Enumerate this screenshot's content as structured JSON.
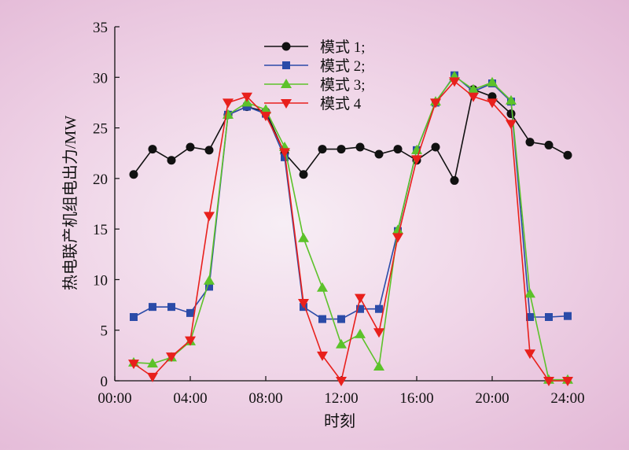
{
  "chart_data": {
    "type": "line",
    "xlabel": "时刻",
    "ylabel": "热电联产机组电出力/MW",
    "x_tick_labels": [
      "00:00",
      "04:00",
      "08:00",
      "12:00",
      "16:00",
      "20:00",
      "24:00"
    ],
    "x_tick_hours": [
      0,
      4,
      8,
      12,
      16,
      20,
      24
    ],
    "y_tick_labels": [
      "0",
      "5",
      "10",
      "15",
      "20",
      "25",
      "30",
      "35"
    ],
    "y_tick_values": [
      0,
      5,
      10,
      15,
      20,
      25,
      30,
      35
    ],
    "xlim": [
      0,
      24
    ],
    "ylim": [
      0,
      35
    ],
    "grid": false,
    "legend_position": "top-center",
    "x": [
      1,
      2,
      3,
      4,
      5,
      6,
      7,
      8,
      9,
      10,
      11,
      12,
      13,
      14,
      15,
      16,
      17,
      18,
      19,
      20,
      21,
      22,
      23,
      24
    ],
    "series": [
      {
        "name": "模式 1;",
        "color": "#111111",
        "marker": "circle",
        "values": [
          20.4,
          22.9,
          21.8,
          23.1,
          22.8,
          26.3,
          27.1,
          26.6,
          22.5,
          20.4,
          22.9,
          22.9,
          23.1,
          22.4,
          22.9,
          21.8,
          23.1,
          19.8,
          28.8,
          28.1,
          26.4,
          23.6,
          23.3,
          22.3
        ]
      },
      {
        "name": "模式 2;",
        "color": "#2b4ba8",
        "marker": "square",
        "values": [
          6.3,
          7.3,
          7.3,
          6.7,
          9.3,
          26.3,
          27.1,
          26.4,
          22.1,
          7.3,
          6.1,
          6.1,
          7.1,
          7.1,
          14.8,
          22.8,
          27.5,
          30.2,
          28.6,
          29.4,
          27.6,
          6.3,
          6.3,
          6.4
        ]
      },
      {
        "name": "模式 3;",
        "color": "#5cc22a",
        "marker": "triangle-up",
        "values": [
          1.8,
          1.7,
          2.3,
          3.9,
          9.9,
          26.3,
          27.5,
          26.8,
          23.1,
          14.1,
          9.2,
          3.6,
          4.6,
          1.4,
          14.9,
          22.8,
          27.6,
          30.1,
          28.8,
          29.5,
          27.7,
          8.6,
          0.1,
          0.1
        ]
      },
      {
        "name": "模式 4",
        "color": "#e8201c",
        "marker": "triangle-down",
        "values": [
          1.7,
          0.4,
          2.4,
          4.0,
          16.3,
          27.5,
          28.1,
          26.2,
          22.6,
          7.7,
          2.5,
          0.0,
          8.2,
          4.8,
          14.2,
          21.9,
          27.5,
          29.6,
          28.1,
          27.5,
          25.4,
          2.7,
          0.0,
          0.0
        ]
      }
    ]
  }
}
